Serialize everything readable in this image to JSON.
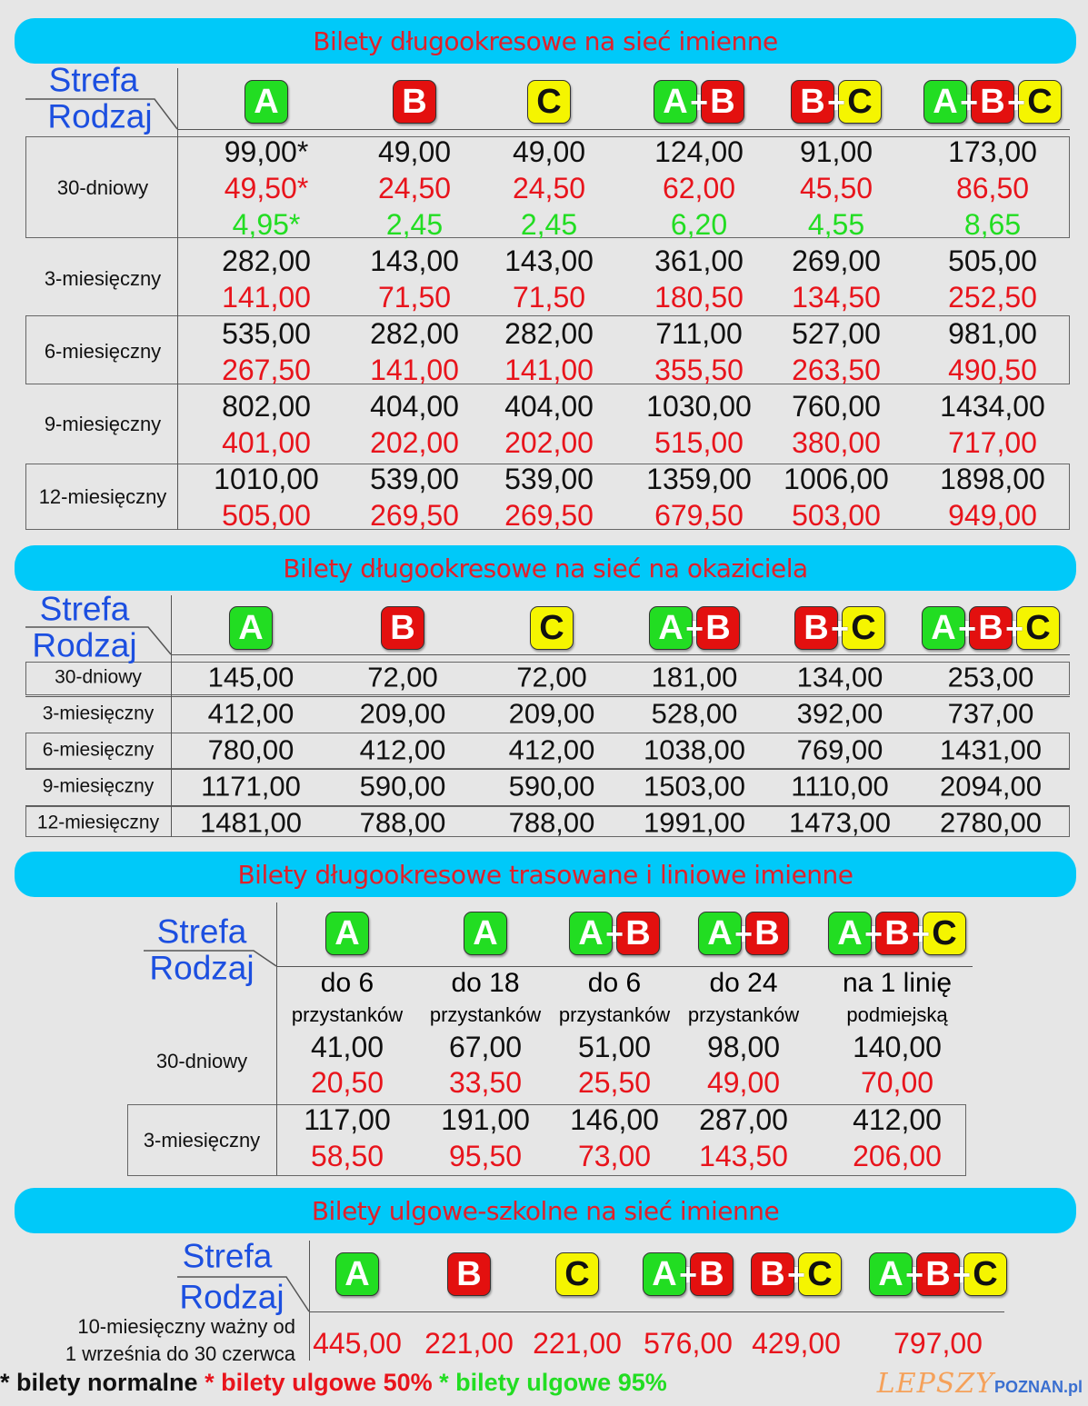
{
  "colors": {
    "banner": "#00c9f9",
    "title": "#e0202a",
    "normal": "#111111",
    "reduced50": "#e8141c",
    "reduced95": "#22dd22",
    "zoneA": "#22dd22",
    "zoneB": "#e3100f",
    "zoneC": "#f5f500",
    "header": "#1c4fe0"
  },
  "sections": [
    {
      "title": "Bilety długookresowe na sieć imienne",
      "strefa": "Strefa",
      "rodzaj": "Rodzaj",
      "zones": [
        "A",
        "B",
        "C",
        "A+B",
        "B+C",
        "A+B+C"
      ],
      "rows": [
        {
          "label": "30-dniowy",
          "lines": [
            [
              "99,00*",
              "49,00",
              "49,00",
              "124,00",
              "91,00",
              "173,00"
            ],
            [
              "49,50*",
              "24,50",
              "24,50",
              "62,00",
              "45,50",
              "86,50"
            ],
            [
              "4,95*",
              "2,45",
              "2,45",
              "6,20",
              "4,55",
              "8,65"
            ]
          ]
        },
        {
          "label": "3-miesięczny",
          "lines": [
            [
              "282,00",
              "143,00",
              "143,00",
              "361,00",
              "269,00",
              "505,00"
            ],
            [
              "141,00",
              "71,50",
              "71,50",
              "180,50",
              "134,50",
              "252,50"
            ]
          ]
        },
        {
          "label": "6-miesięczny",
          "lines": [
            [
              "535,00",
              "282,00",
              "282,00",
              "711,00",
              "527,00",
              "981,00"
            ],
            [
              "267,50",
              "141,00",
              "141,00",
              "355,50",
              "263,50",
              "490,50"
            ]
          ]
        },
        {
          "label": "9-miesięczny",
          "lines": [
            [
              "802,00",
              "404,00",
              "404,00",
              "1030,00",
              "760,00",
              "1434,00"
            ],
            [
              "401,00",
              "202,00",
              "202,00",
              "515,00",
              "380,00",
              "717,00"
            ]
          ]
        },
        {
          "label": "12-miesięczny",
          "lines": [
            [
              "1010,00",
              "539,00",
              "539,00",
              "1359,00",
              "1006,00",
              "1898,00"
            ],
            [
              "505,00",
              "269,50",
              "269,50",
              "679,50",
              "503,00",
              "949,00"
            ]
          ]
        }
      ]
    },
    {
      "title": "Bilety długookresowe na sieć na okaziciela",
      "strefa": "Strefa",
      "rodzaj": "Rodzaj",
      "zones": [
        "A",
        "B",
        "C",
        "A+B",
        "B+C",
        "A+B+C"
      ],
      "rows": [
        {
          "label": "30-dniowy",
          "lines": [
            [
              "145,00",
              "72,00",
              "72,00",
              "181,00",
              "134,00",
              "253,00"
            ]
          ]
        },
        {
          "label": "3-miesięczny",
          "lines": [
            [
              "412,00",
              "209,00",
              "209,00",
              "528,00",
              "392,00",
              "737,00"
            ]
          ]
        },
        {
          "label": "6-miesięczny",
          "lines": [
            [
              "780,00",
              "412,00",
              "412,00",
              "1038,00",
              "769,00",
              "1431,00"
            ]
          ]
        },
        {
          "label": "9-miesięczny",
          "lines": [
            [
              "1171,00",
              "590,00",
              "590,00",
              "1503,00",
              "1110,00",
              "2094,00"
            ]
          ]
        },
        {
          "label": "12-miesięczny",
          "lines": [
            [
              "1481,00",
              "788,00",
              "788,00",
              "1991,00",
              "1473,00",
              "2780,00"
            ]
          ]
        }
      ]
    },
    {
      "title": "Bilety długookresowe trasowane i liniowe imienne",
      "strefa": "Strefa",
      "rodzaj": "Rodzaj",
      "zones": [
        "A",
        "A",
        "A+B",
        "A+B",
        "A+B+C"
      ],
      "sublabels": [
        [
          "do 6",
          "przystanków"
        ],
        [
          "do 18",
          "przystanków"
        ],
        [
          "do 6",
          "przystanków"
        ],
        [
          "do 24",
          "przystanków"
        ],
        [
          "na 1 linię",
          "podmiejską"
        ]
      ],
      "rows": [
        {
          "label": "30-dniowy",
          "lines": [
            [
              "41,00",
              "67,00",
              "51,00",
              "98,00",
              "140,00"
            ],
            [
              "20,50",
              "33,50",
              "25,50",
              "49,00",
              "70,00"
            ]
          ]
        },
        {
          "label": "3-miesięczny",
          "lines": [
            [
              "117,00",
              "191,00",
              "146,00",
              "287,00",
              "412,00"
            ],
            [
              "58,50",
              "95,50",
              "73,00",
              "143,50",
              "206,00"
            ]
          ]
        }
      ]
    },
    {
      "title": "Bilety ulgowe-szkolne na sieć imienne",
      "strefa": "Strefa",
      "rodzaj": "Rodzaj",
      "zones": [
        "A",
        "B",
        "C",
        "A+B",
        "B+C",
        "A+B+C"
      ],
      "rows": [
        {
          "label": "10-miesięczny ważny od",
          "label2": "1 września do 30 czerwca",
          "lines": [
            [
              "445,00",
              "221,00",
              "221,00",
              "576,00",
              "429,00",
              "797,00"
            ]
          ]
        }
      ]
    }
  ],
  "footer": {
    "normal": "* bilety normalne",
    "reduced50": "* bilety ulgowe 50%",
    "reduced95": "* bilety ulgowe 95%"
  },
  "logo": {
    "part1": "LEPSZY",
    "part2": "POZNAN.pl"
  }
}
